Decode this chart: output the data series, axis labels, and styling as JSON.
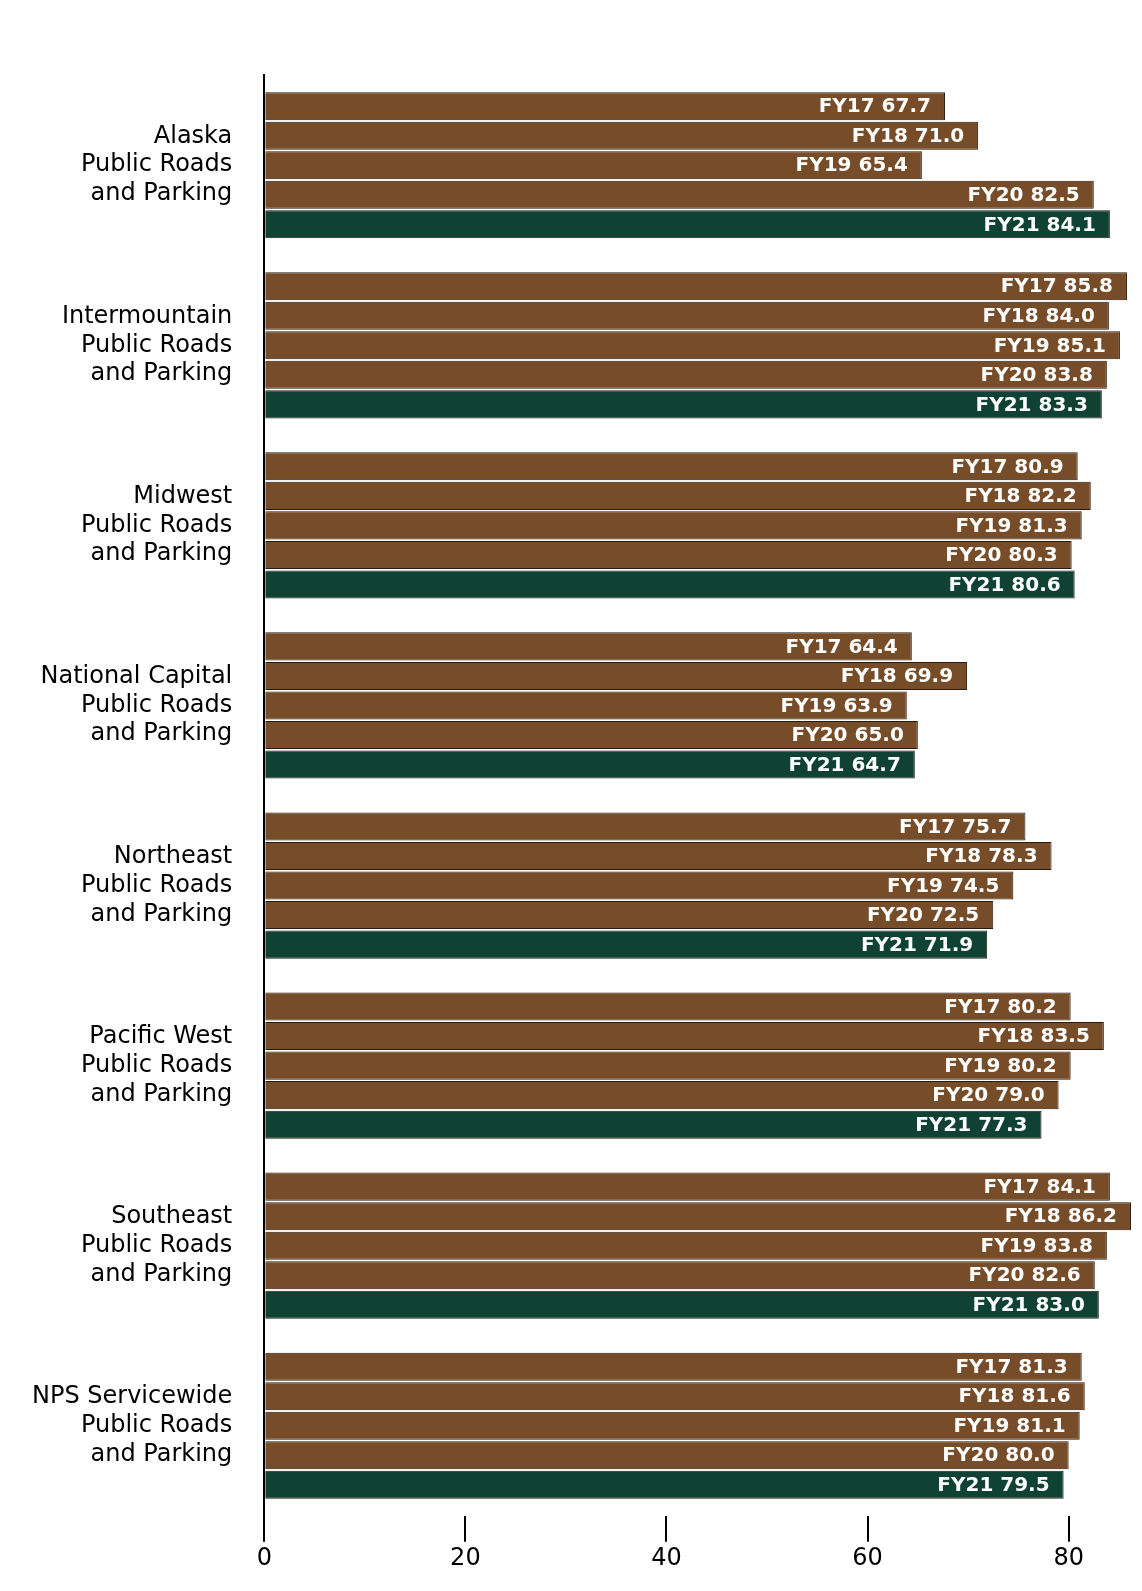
{
  "chart_data": {
    "type": "bar",
    "orientation": "horizontal",
    "categories": [
      "Alaska\nPublic Roads\nand Parking",
      "Intermountain\nPublic Roads\nand Parking",
      "Midwest\nPublic Roads\nand Parking",
      "National Capital\nPublic Roads\nand Parking",
      "Northeast\nPublic Roads\nand Parking",
      "Pacific West\nPublic Roads\nand Parking",
      "Southeast\nPublic Roads\nand Parking",
      "NPS Servicewide\nPublic Roads\nand Parking"
    ],
    "series": [
      {
        "name": "FY17",
        "color": "#774c29",
        "values": [
          67.7,
          85.8,
          80.9,
          64.4,
          75.7,
          80.2,
          84.1,
          81.3
        ],
        "value_labels": [
          "67.7",
          "85.8",
          "80.9",
          "64.4",
          "75.7",
          "80.2",
          "84.1",
          "81.3"
        ]
      },
      {
        "name": "FY18",
        "color": "#774c29",
        "values": [
          71.0,
          84.0,
          82.2,
          69.9,
          78.3,
          83.5,
          86.2,
          81.6
        ],
        "value_labels": [
          "71.0",
          "84.0",
          "82.2",
          "69.9",
          "78.3",
          "83.5",
          "86.2",
          "81.6"
        ]
      },
      {
        "name": "FY19",
        "color": "#774c29",
        "values": [
          65.4,
          85.1,
          81.3,
          63.9,
          74.5,
          80.2,
          83.8,
          81.1
        ],
        "value_labels": [
          "65.4",
          "85.1",
          "81.3",
          "63.9",
          "74.5",
          "80.2",
          "83.8",
          "81.1"
        ]
      },
      {
        "name": "FY20",
        "color": "#774c29",
        "values": [
          82.5,
          83.8,
          80.3,
          65.0,
          72.5,
          79.0,
          82.6,
          80.0
        ],
        "value_labels": [
          "82.5",
          "83.8",
          "80.3",
          "65.0",
          "72.5",
          "79.0",
          "82.6",
          "80.0"
        ]
      },
      {
        "name": "FY21",
        "color": "#0f4232",
        "values": [
          84.1,
          83.3,
          80.6,
          64.7,
          71.9,
          77.3,
          83.0,
          79.5
        ],
        "value_labels": [
          "84.1",
          "83.3",
          "80.6",
          "64.7",
          "71.9",
          "77.3",
          "83.0",
          "79.5"
        ]
      }
    ],
    "xlim": [
      0,
      86.5
    ],
    "xticks": [
      0,
      20,
      40,
      60,
      80
    ],
    "grid": false,
    "legend": false
  }
}
